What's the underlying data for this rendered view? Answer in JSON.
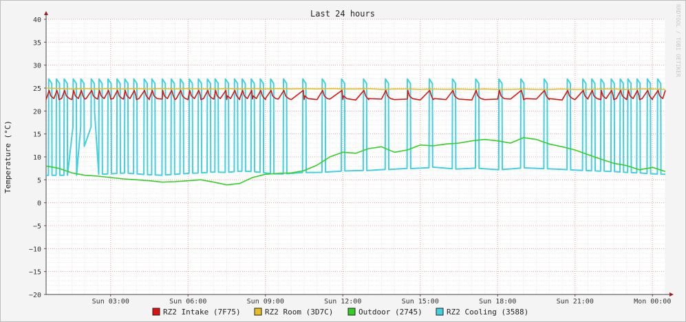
{
  "watermark": "RRDTOOL / TOBI OETIKER",
  "chart_data": {
    "type": "line",
    "title": "Last 24 hours",
    "ylabel": "Temperature (°C)",
    "xlabel": "",
    "ylim": [
      -20,
      40
    ],
    "xlim": [
      0,
      24
    ],
    "yticks": [
      40,
      35,
      30,
      25,
      20,
      15,
      10,
      5,
      0,
      -5,
      -10,
      -15,
      -20
    ],
    "xticks": [
      {
        "x": 2.5,
        "label": "Sun 03:00"
      },
      {
        "x": 5.5,
        "label": "Sun 06:00"
      },
      {
        "x": 8.5,
        "label": "Sun 09:00"
      },
      {
        "x": 11.5,
        "label": "Sun 12:00"
      },
      {
        "x": 14.5,
        "label": "Sun 15:00"
      },
      {
        "x": 17.5,
        "label": "Sun 18:00"
      },
      {
        "x": 20.5,
        "label": "Sun 21:00"
      },
      {
        "x": 23.5,
        "label": "Mon 00:00"
      }
    ],
    "grid": true,
    "legend_position": "bottom",
    "series": [
      {
        "name": "RZ2 Intake (7F75)",
        "color": "#e01010",
        "x": [
          0.0,
          0.5,
          1.0,
          1.5,
          2.0,
          2.5,
          3.0,
          3.5,
          4.0,
          4.5,
          5.0,
          5.5,
          6.0,
          6.5,
          7.0,
          7.5,
          8.0,
          8.5,
          9.0,
          9.5,
          10.0,
          10.5,
          11.0,
          11.5,
          12.0,
          12.5,
          13.0,
          13.5,
          14.0,
          14.5,
          15.0,
          15.5,
          16.0,
          16.5,
          17.0,
          17.5,
          18.0,
          18.5,
          19.0,
          19.5,
          20.0,
          20.5,
          21.0,
          21.5,
          22.0,
          22.5,
          23.0,
          23.5,
          24.0
        ],
        "values": [
          22.5,
          22.5,
          22.5,
          22.6,
          22.6,
          22.6,
          22.6,
          22.5,
          22.5,
          22.6,
          22.5,
          22.5,
          22.5,
          22.6,
          22.5,
          22.5,
          22.6,
          22.5,
          22.6,
          22.5,
          22.5,
          22.5,
          22.6,
          22.5,
          22.4,
          22.5,
          22.6,
          22.5,
          22.6,
          22.4,
          22.5,
          22.5,
          22.6,
          22.4,
          22.5,
          22.6,
          22.6,
          22.5,
          22.6,
          22.5,
          22.4,
          22.5,
          22.6,
          22.5,
          22.5,
          22.5,
          22.5,
          22.5,
          24.5
        ]
      },
      {
        "name": "RZ2 Room (3D7C)",
        "color": "#e6c020",
        "x": [
          0.0,
          0.5,
          1.0,
          1.5,
          2.0,
          2.5,
          3.0,
          3.5,
          4.0,
          4.5,
          5.0,
          5.5,
          6.0,
          6.5,
          7.0,
          7.5,
          8.0,
          8.5,
          9.0,
          9.5,
          10.0,
          10.5,
          11.0,
          11.5,
          12.0,
          12.5,
          13.0,
          13.5,
          14.0,
          14.5,
          15.0,
          15.5,
          16.0,
          16.5,
          17.0,
          17.5,
          18.0,
          18.5,
          19.0,
          19.5,
          20.0,
          20.5,
          21.0,
          21.5,
          22.0,
          22.5,
          23.0,
          23.5,
          24.0
        ],
        "values": [
          25.0,
          24.9,
          24.8,
          24.9,
          24.8,
          24.9,
          24.8,
          24.9,
          24.8,
          24.9,
          24.8,
          24.9,
          24.8,
          24.8,
          24.9,
          24.8,
          24.9,
          24.8,
          24.9,
          24.8,
          24.9,
          24.8,
          24.9,
          24.8,
          24.8,
          24.9,
          24.7,
          24.8,
          24.8,
          24.7,
          24.8,
          24.7,
          24.8,
          24.7,
          24.8,
          24.7,
          24.7,
          24.8,
          24.7,
          24.7,
          24.8,
          24.7,
          24.7,
          24.8,
          24.8,
          24.7,
          24.8,
          24.8,
          24.7
        ]
      },
      {
        "name": "Outdoor (2745)",
        "color": "#30d020",
        "x": [
          0.0,
          0.5,
          1.0,
          1.5,
          2.0,
          2.5,
          3.0,
          3.5,
          4.0,
          4.5,
          5.0,
          5.5,
          6.0,
          6.5,
          7.0,
          7.5,
          8.0,
          8.5,
          9.0,
          9.5,
          10.0,
          10.5,
          11.0,
          11.5,
          12.0,
          12.5,
          13.0,
          13.5,
          14.0,
          14.5,
          15.0,
          15.5,
          16.0,
          16.5,
          17.0,
          17.5,
          18.0,
          18.5,
          19.0,
          19.5,
          20.0,
          20.5,
          21.0,
          21.5,
          22.0,
          22.5,
          23.0,
          23.5,
          24.0
        ],
        "values": [
          8.0,
          7.5,
          6.5,
          6.0,
          5.8,
          5.5,
          5.2,
          5.0,
          4.8,
          4.5,
          4.6,
          4.8,
          5.0,
          4.5,
          3.9,
          4.2,
          5.5,
          6.2,
          6.4,
          6.5,
          7.0,
          8.2,
          10.0,
          11.0,
          10.8,
          11.8,
          12.2,
          11.0,
          11.5,
          12.6,
          12.4,
          12.8,
          13.0,
          13.5,
          13.8,
          13.5,
          13.0,
          14.2,
          13.8,
          12.8,
          12.2,
          11.5,
          10.5,
          9.5,
          8.6,
          8.1,
          7.2,
          7.7,
          6.8
        ]
      },
      {
        "name": "RZ2 Cooling (3588)",
        "color": "#40d0e0",
        "x": [
          0.0,
          0.05,
          0.1,
          0.2,
          0.3,
          0.35,
          0.4,
          0.5,
          0.6,
          0.65,
          0.7,
          0.8,
          0.9,
          1.0,
          1.1,
          1.2,
          1.3,
          1.4,
          1.5,
          1.6,
          1.7,
          1.8,
          2.0,
          2.5,
          3.0,
          3.5,
          4.0,
          4.5,
          5.0,
          5.5,
          6.0,
          6.5,
          7.0,
          7.5,
          8.0,
          8.5,
          9.0,
          9.5,
          10.0,
          10.5,
          11.0,
          11.5,
          12.0,
          12.5,
          13.0,
          13.5,
          14.0,
          14.5,
          15.0,
          15.5,
          16.0,
          16.5,
          17.0,
          17.5,
          18.0,
          18.5,
          19.0,
          19.5,
          20.0,
          20.5,
          21.0,
          21.5,
          22.0,
          22.5,
          23.0,
          23.5,
          24.0
        ],
        "values": [
          6.0,
          27.0,
          6.0,
          6.0,
          6.0,
          27.0,
          6.0,
          6.0,
          6.0,
          27.0,
          6.0,
          6.0,
          6.0,
          27.0,
          6.0,
          6.0,
          6.0,
          27.0,
          6.0,
          6.0,
          6.0,
          27.0,
          6.2,
          6.3,
          6.5,
          6.3,
          6.1,
          6.0,
          6.2,
          6.4,
          6.5,
          6.7,
          6.6,
          6.9,
          6.8,
          6.5,
          6.2,
          6.4,
          6.6,
          6.5,
          6.8,
          6.9,
          7.1,
          7.0,
          7.3,
          7.2,
          7.5,
          7.3,
          7.8,
          7.5,
          7.3,
          7.6,
          7.4,
          7.2,
          7.3,
          7.6,
          7.5,
          7.4,
          7.3,
          7.1,
          7.0,
          6.9,
          6.8,
          6.6,
          6.5,
          6.3,
          6.2
        ]
      }
    ],
    "note_cooling_pulses": "",
    "cooling_pulse_times": [
      0.1,
      0.4,
      0.7,
      1.05,
      1.35,
      1.75,
      2.05,
      2.4,
      2.75,
      3.05,
      3.4,
      3.8,
      4.1,
      4.5,
      4.85,
      5.2,
      5.55,
      5.9,
      6.25,
      6.55,
      6.95,
      7.3,
      7.6,
      7.95,
      8.3,
      8.7,
      9.2,
      9.95,
      10.7,
      11.45,
      12.3,
      13.15,
      14.0,
      14.85,
      15.75,
      16.65,
      17.55,
      18.4,
      19.3,
      20.2,
      20.8,
      21.15,
      21.5,
      21.9,
      22.25,
      22.55,
      22.9,
      23.3,
      23.7
    ],
    "cooling_pulse_peak": 27.0
  }
}
